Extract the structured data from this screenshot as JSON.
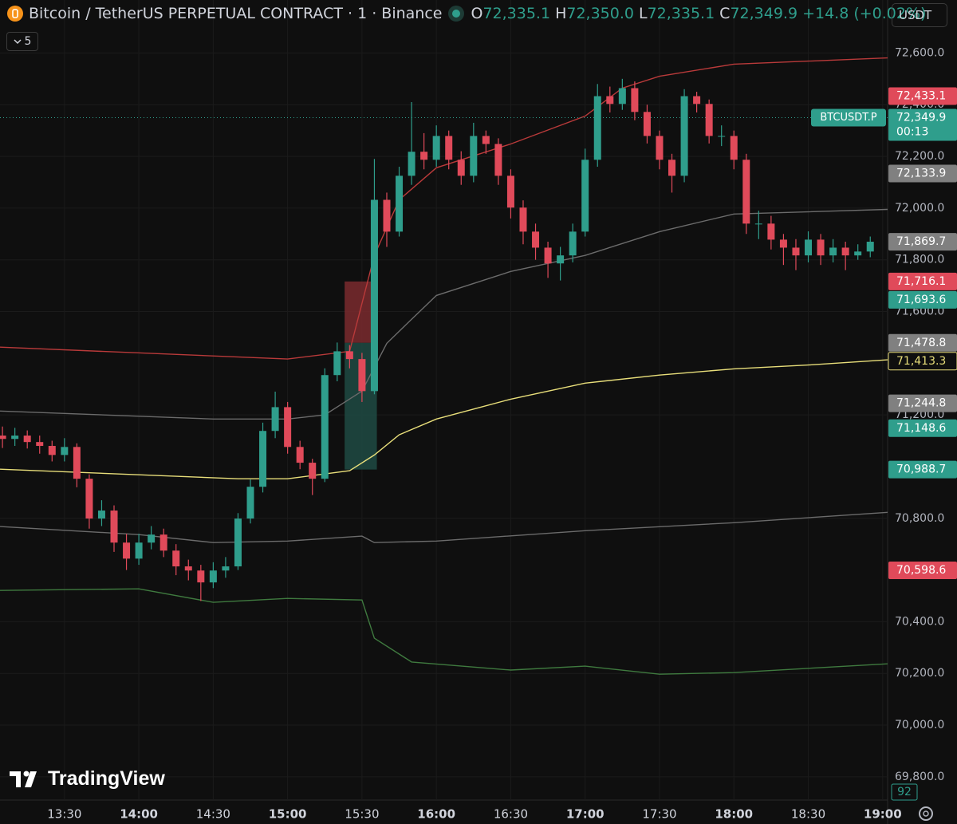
{
  "header": {
    "symbol": "Bitcoin / TetherUS PERPETUAL CONTRACT · 1 · Binance",
    "o_key": "O",
    "o": "72,335.1",
    "h_key": "H",
    "h": "72,350.0",
    "l_key": "L",
    "l": "72,335.1",
    "c_key": "C",
    "c": "72,349.9",
    "change": "+14.8 (+0.02%)",
    "indicator_count": "5",
    "currency": "USDT"
  },
  "chart_data": {
    "type": "candlestick",
    "up_color": "#2f9e8c",
    "down_color": "#e04a5a",
    "grid": true,
    "xlim": [
      784,
      1142
    ],
    "ylim": [
      69710,
      72805
    ],
    "xticks": [
      {
        "value": 810,
        "label": "13:30"
      },
      {
        "value": 840,
        "label": "14:00"
      },
      {
        "value": 870,
        "label": "14:30"
      },
      {
        "value": 900,
        "label": "15:00"
      },
      {
        "value": 930,
        "label": "15:30"
      },
      {
        "value": 960,
        "label": "16:00"
      },
      {
        "value": 990,
        "label": "16:30"
      },
      {
        "value": 1020,
        "label": "17:00"
      },
      {
        "value": 1050,
        "label": "17:30"
      },
      {
        "value": 1080,
        "label": "18:00"
      },
      {
        "value": 1110,
        "label": "18:30"
      },
      {
        "value": 1140,
        "label": "19:00"
      }
    ],
    "yticks": [
      {
        "value": 72600,
        "label": "72,600.0"
      },
      {
        "value": 72400,
        "label": "72,400.0"
      },
      {
        "value": 72200,
        "label": "72,200.0"
      },
      {
        "value": 72000,
        "label": "72,000.0"
      },
      {
        "value": 71800,
        "label": "71,800.0"
      },
      {
        "value": 71600,
        "label": "71,600.0"
      },
      {
        "value": 71200,
        "label": "71,200.0"
      },
      {
        "value": 70800,
        "label": "70,800.0"
      },
      {
        "value": 70400,
        "label": "70,400.0"
      },
      {
        "value": 70200,
        "label": "70,200.0"
      },
      {
        "value": 70000,
        "label": "70,000.0"
      },
      {
        "value": 69800,
        "label": "69,800.0"
      }
    ],
    "x": [
      785,
      790,
      795,
      800,
      805,
      810,
      815,
      820,
      825,
      830,
      835,
      840,
      845,
      850,
      855,
      860,
      865,
      870,
      875,
      880,
      885,
      890,
      895,
      900,
      905,
      910,
      915,
      920,
      925,
      930,
      935,
      940,
      945,
      950,
      955,
      960,
      965,
      970,
      975,
      980,
      985,
      990,
      995,
      1000,
      1005,
      1010,
      1015,
      1020,
      1025,
      1030,
      1035,
      1040,
      1045,
      1050,
      1055,
      1060,
      1065,
      1070,
      1075,
      1080,
      1085,
      1090,
      1095,
      1100,
      1105,
      1110,
      1115,
      1120,
      1125,
      1130,
      1135
    ],
    "open": [
      71120,
      71107,
      71120,
      71095,
      71080,
      71045,
      71076,
      70953,
      70799,
      70830,
      70706,
      70644,
      70706,
      70737,
      70675,
      70614,
      70598,
      70552,
      70598,
      70614,
      70799,
      70922,
      71138,
      71230,
      71076,
      71015,
      70953,
      71354,
      71446,
      71416,
      71292,
      72032,
      71909,
      72125,
      72218,
      72187,
      72279,
      72187,
      72125,
      72279,
      72248,
      72125,
      72002,
      71909,
      71847,
      71786,
      71817,
      71909,
      72187,
      72433,
      72403,
      72464,
      72372,
      72279,
      72187,
      72125,
      72433,
      72403,
      72279,
      72279,
      72187,
      71940,
      71940,
      71878,
      71847,
      71817,
      71878,
      71817,
      71847,
      71817,
      71832
    ],
    "high": [
      71155,
      71150,
      71140,
      71120,
      71100,
      71110,
      71090,
      70970,
      70870,
      70850,
      70740,
      70740,
      70770,
      70760,
      70700,
      70640,
      70620,
      70630,
      70650,
      70820,
      70950,
      71170,
      71290,
      71250,
      71100,
      71030,
      71380,
      71480,
      71470,
      71440,
      72190,
      72060,
      72160,
      72410,
      72290,
      72320,
      72300,
      72220,
      72330,
      72300,
      72270,
      72150,
      72030,
      71940,
      71870,
      71850,
      71940,
      72230,
      72480,
      72470,
      72500,
      72490,
      72400,
      72300,
      72210,
      72460,
      72450,
      72420,
      72320,
      72300,
      72210,
      71990,
      71970,
      71900,
      71880,
      71910,
      71900,
      71880,
      71870,
      71860,
      71890
    ],
    "low": [
      71072,
      71080,
      71070,
      71050,
      71020,
      71020,
      70920,
      70760,
      70770,
      70670,
      70600,
      70620,
      70680,
      70650,
      70580,
      70560,
      70480,
      70530,
      70570,
      70600,
      70780,
      70900,
      71110,
      71050,
      70990,
      70890,
      70940,
      71330,
      71380,
      71250,
      71280,
      71850,
      71890,
      72090,
      72150,
      72160,
      72150,
      72090,
      72100,
      72210,
      72090,
      71960,
      71860,
      71800,
      71730,
      71720,
      71790,
      71890,
      72160,
      72370,
      72380,
      72340,
      72250,
      72150,
      72060,
      72100,
      72370,
      72250,
      72240,
      72150,
      71900,
      71880,
      71840,
      71780,
      71760,
      71790,
      71780,
      71790,
      71760,
      71800,
      71810
    ],
    "close": [
      71107,
      71120,
      71095,
      71080,
      71045,
      71076,
      70953,
      70799,
      70830,
      70706,
      70644,
      70706,
      70737,
      70675,
      70614,
      70598,
      70552,
      70598,
      70614,
      70799,
      70922,
      71138,
      71230,
      71076,
      71015,
      70953,
      71354,
      71446,
      71416,
      71292,
      72032,
      71909,
      72125,
      72218,
      72187,
      72279,
      72187,
      72125,
      72279,
      72248,
      72125,
      72002,
      71909,
      71847,
      71786,
      71817,
      71909,
      72187,
      72433,
      72403,
      72464,
      72372,
      72279,
      72187,
      72125,
      72433,
      72403,
      72279,
      72279,
      72187,
      71940,
      71940,
      71878,
      71847,
      71817,
      71878,
      71817,
      71847,
      71817,
      71832,
      71870
    ],
    "lines": [
      {
        "color": "#b93a3a",
        "x": [
          784,
          900,
          925,
          935,
          945,
          960,
          990,
          1020,
          1035,
          1050,
          1080,
          1142
        ],
        "values": [
          71462,
          71416,
          71446,
          71817,
          72032,
          72156,
          72248,
          72356,
          72464,
          72510,
          72557,
          72581
        ]
      },
      {
        "color": "#6b6b6b",
        "x": [
          784,
          870,
          900,
          915,
          930,
          940,
          950,
          960,
          990,
          1020,
          1050,
          1080,
          1142
        ],
        "values": [
          71215,
          71184,
          71184,
          71200,
          71292,
          71477,
          71570,
          71662,
          71755,
          71817,
          71909,
          71977,
          71995
        ]
      },
      {
        "color": "#e8de7a",
        "x": [
          784,
          880,
          900,
          925,
          935,
          945,
          960,
          990,
          1020,
          1050,
          1080,
          1110,
          1142
        ],
        "values": [
          70990,
          70953,
          70953,
          70984,
          71045,
          71123,
          71184,
          71261,
          71323,
          71354,
          71378,
          71393,
          71413
        ]
      },
      {
        "color": "#6b6b6b",
        "x": [
          784,
          840,
          870,
          900,
          930,
          935,
          960,
          1020,
          1080,
          1142
        ],
        "values": [
          70768,
          70737,
          70706,
          70712,
          70731,
          70706,
          70712,
          70752,
          70783,
          70823
        ]
      },
      {
        "color": "#3f7a3f",
        "x": [
          784,
          840,
          870,
          900,
          930,
          935,
          950,
          990,
          1020,
          1050,
          1080,
          1142
        ],
        "values": [
          70521,
          70527,
          70475,
          70490,
          70484,
          70336,
          70244,
          70213,
          70228,
          70197,
          70203,
          70237
        ]
      }
    ],
    "position": {
      "x": [
        923,
        936
      ],
      "stop": 71716.1,
      "entry": 71478.8,
      "target": 70988.7,
      "stop_color": "#7a2a2e",
      "target_color": "#1f4a43"
    },
    "price_labels": [
      {
        "value": 72433.1,
        "label": "72,433.1",
        "color": "#e04a5a"
      },
      {
        "value": 72349.9,
        "label": "72,349.9",
        "color": "#2f9e8c"
      },
      {
        "value": 72133.9,
        "label": "72,133.9",
        "color": "#808080"
      },
      {
        "value": 71869.7,
        "label": "71,869.7",
        "color": "#808080"
      },
      {
        "value": 71716.1,
        "label": "71,716.1",
        "color": "#e04a5a"
      },
      {
        "value": 71693.6,
        "label": "71,693.6",
        "color": "#2f9e8c"
      },
      {
        "value": 71478.8,
        "label": "71,478.8",
        "color": "#808080"
      },
      {
        "value": 71413.3,
        "label": "71,413.3",
        "color": "#e8de7a",
        "outline": true
      },
      {
        "value": 71244.8,
        "label": "71,244.8",
        "color": "#808080"
      },
      {
        "value": 71148.6,
        "label": "71,148.6",
        "color": "#2f9e8c"
      },
      {
        "value": 70988.7,
        "label": "70,988.7",
        "color": "#2f9e8c"
      },
      {
        "value": 70598.6,
        "label": "70,598.6",
        "color": "#e04a5a"
      }
    ],
    "last_price_label": 1,
    "symbol_tag": "BTCUSDT.P",
    "countdown": "00:13",
    "volume_label": "92"
  },
  "watermark": "TradingView"
}
